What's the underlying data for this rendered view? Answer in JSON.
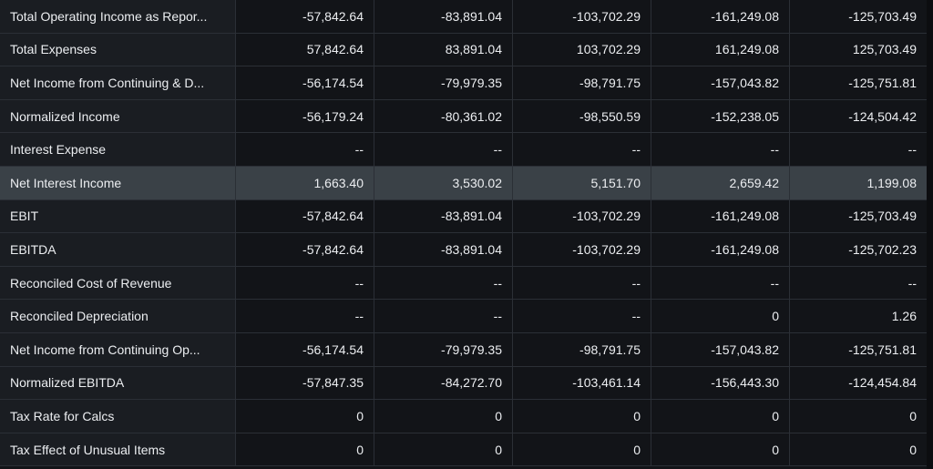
{
  "table": {
    "rows": [
      {
        "label": "Total Operating Income as Repor...",
        "values": [
          "-57,842.64",
          "-83,891.04",
          "-103,702.29",
          "-161,249.08",
          "-125,703.49"
        ]
      },
      {
        "label": "Total Expenses",
        "values": [
          "57,842.64",
          "83,891.04",
          "103,702.29",
          "161,249.08",
          "125,703.49"
        ]
      },
      {
        "label": "Net Income from Continuing & D...",
        "values": [
          "-56,174.54",
          "-79,979.35",
          "-98,791.75",
          "-157,043.82",
          "-125,751.81"
        ]
      },
      {
        "label": "Normalized Income",
        "values": [
          "-56,179.24",
          "-80,361.02",
          "-98,550.59",
          "-152,238.05",
          "-124,504.42"
        ]
      },
      {
        "label": "Interest Expense",
        "values": [
          "--",
          "--",
          "--",
          "--",
          "--"
        ]
      },
      {
        "label": "Net Interest Income",
        "values": [
          "1,663.40",
          "3,530.02",
          "5,151.70",
          "2,659.42",
          "1,199.08"
        ]
      },
      {
        "label": "EBIT",
        "values": [
          "-57,842.64",
          "-83,891.04",
          "-103,702.29",
          "-161,249.08",
          "-125,703.49"
        ]
      },
      {
        "label": "EBITDA",
        "values": [
          "-57,842.64",
          "-83,891.04",
          "-103,702.29",
          "-161,249.08",
          "-125,702.23"
        ]
      },
      {
        "label": "Reconciled Cost of Revenue",
        "values": [
          "--",
          "--",
          "--",
          "--",
          "--"
        ]
      },
      {
        "label": "Reconciled Depreciation",
        "values": [
          "--",
          "--",
          "--",
          "0",
          "1.26"
        ]
      },
      {
        "label": "Net Income from Continuing Op...",
        "values": [
          "-56,174.54",
          "-79,979.35",
          "-98,791.75",
          "-157,043.82",
          "-125,751.81"
        ]
      },
      {
        "label": "Normalized EBITDA",
        "values": [
          "-57,847.35",
          "-84,272.70",
          "-103,461.14",
          "-156,443.30",
          "-124,454.84"
        ]
      },
      {
        "label": "Tax Rate for Calcs",
        "values": [
          "0",
          "0",
          "0",
          "0",
          "0"
        ]
      },
      {
        "label": "Tax Effect of Unusual Items",
        "values": [
          "0",
          "0",
          "0",
          "0",
          "0"
        ]
      }
    ],
    "highlighted_row": "Net Interest Income"
  }
}
